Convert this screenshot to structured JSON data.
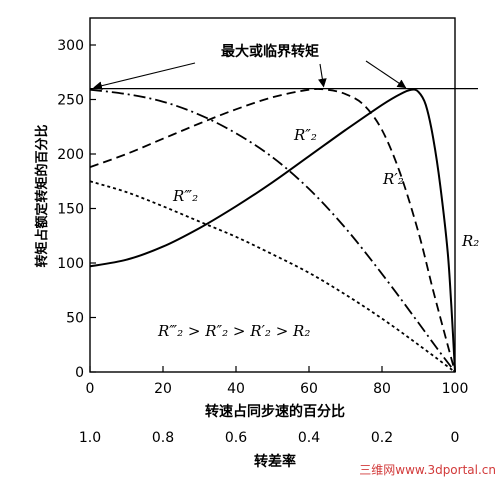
{
  "chart_data": {
    "type": "line",
    "annotation_title": "最大或临界转矩",
    "xlabel": "转速占同步速的百分比",
    "x2label": "转差率",
    "ylabel": "转矩占额定转矩的百分比",
    "xlim": [
      0,
      100
    ],
    "ylim": [
      0,
      300
    ],
    "xticks": [
      "0",
      "20",
      "40",
      "60",
      "80",
      "100"
    ],
    "x2ticks": [
      "1.0",
      "0.8",
      "0.6",
      "0.4",
      "0.2",
      "0"
    ],
    "yticks": [
      "0",
      "50",
      "100",
      "150",
      "200",
      "250",
      "300"
    ],
    "inequality": "R‴₂ > R″₂ > R′₂ > R₂",
    "watermark": "三维网www.3dportal.cn",
    "max_torque": 260,
    "grid": false,
    "series": [
      {
        "name": "R₂",
        "style": "solid",
        "x": [
          0,
          10,
          20,
          30,
          40,
          50,
          60,
          70,
          80,
          85,
          88,
          90,
          92,
          94,
          96,
          98,
          99,
          100
        ],
        "y": [
          97,
          103,
          115,
          132,
          152,
          174,
          198,
          222,
          245,
          255,
          259,
          257,
          245,
          215,
          170,
          110,
          60,
          0
        ]
      },
      {
        "name": "R′₂",
        "style": "dashed",
        "x": [
          0,
          10,
          20,
          30,
          40,
          50,
          60,
          65,
          70,
          75,
          80,
          85,
          90,
          94,
          97,
          100
        ],
        "y": [
          188,
          200,
          214,
          228,
          241,
          252,
          259,
          259,
          255,
          245,
          222,
          182,
          128,
          75,
          37,
          0
        ]
      },
      {
        "name": "R″₂",
        "style": "dash-dot",
        "x": [
          0,
          10,
          20,
          30,
          40,
          50,
          60,
          70,
          80,
          90,
          95,
          100
        ],
        "y": [
          259,
          255,
          248,
          236,
          219,
          197,
          168,
          132,
          90,
          45,
          22,
          0
        ]
      },
      {
        "name": "R‴₂",
        "style": "dotted",
        "x": [
          0,
          10,
          20,
          30,
          40,
          50,
          60,
          70,
          80,
          90,
          100
        ],
        "y": [
          175,
          165,
          152,
          138,
          124,
          108,
          91,
          71,
          49,
          25,
          0
        ]
      }
    ],
    "series_labels": [
      {
        "text": "R₂"
      },
      {
        "text": "R′₂"
      },
      {
        "text": "R″₂"
      },
      {
        "text": "R‴₂"
      }
    ]
  }
}
